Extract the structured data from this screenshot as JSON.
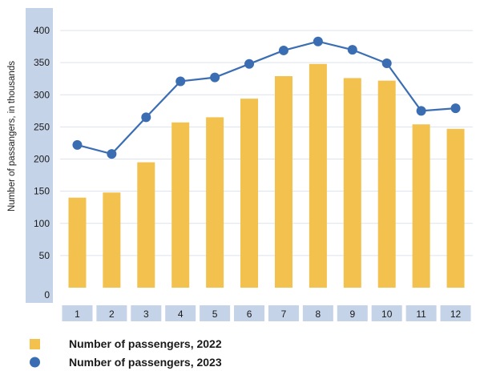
{
  "chart_data": {
    "type": "bar",
    "title": "",
    "xlabel": "",
    "ylabel": "Number of passangers, in thousands",
    "ylim": [
      0,
      430
    ],
    "yticks": [
      0,
      50,
      100,
      150,
      200,
      250,
      300,
      350,
      400
    ],
    "categories": [
      "1",
      "2",
      "3",
      "4",
      "5",
      "6",
      "7",
      "8",
      "9",
      "10",
      "11",
      "12"
    ],
    "grid": "horizontal",
    "legend_position": "bottom-left",
    "series": [
      {
        "name": "Number of passengers, 2022",
        "kind": "bar",
        "color": "#F2C14E",
        "values": [
          140,
          148,
          195,
          257,
          265,
          294,
          329,
          348,
          326,
          322,
          254,
          247
        ]
      },
      {
        "name": "Number of passengers, 2023",
        "kind": "line",
        "color": "#3B6DB3",
        "values": [
          222,
          208,
          265,
          321,
          327,
          348,
          369,
          383,
          370,
          349,
          275,
          279
        ]
      }
    ]
  },
  "colors": {
    "axis_band": "#C5D3E8",
    "gridline": "#DCE3EE",
    "bar": "#F2C14E",
    "line": "#3B6DB3"
  }
}
